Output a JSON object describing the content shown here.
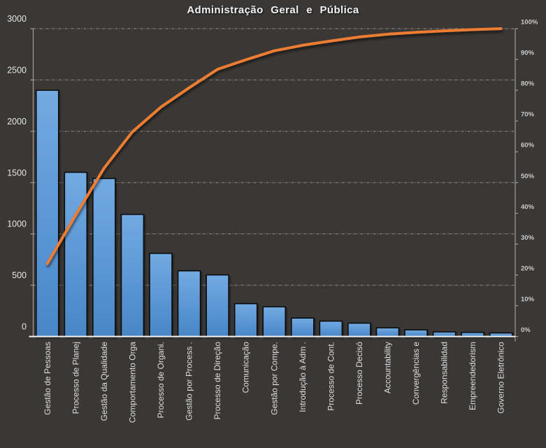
{
  "chart_data": {
    "type": "bar",
    "subtype": "pareto",
    "title": "Administração Geral e Pública",
    "legend": "none",
    "grid": "horizontal-dashed",
    "categories": [
      "Gestão de Pessoas",
      "Processo de Planej",
      "Gestão da Qualidade",
      "Comportamento Orga",
      "Processo de Organi.",
      "Gestão por Process .",
      "Processo de Direção",
      "Comunicação",
      "Gestão por Compe.",
      "Introdução à Adm .",
      "Processo de Cont.",
      "Processo Decisó",
      "Accountability",
      "Convergências e",
      "Responsabilidad",
      "Empreendedorism",
      "Governo Eletrônico"
    ],
    "bars": {
      "values": [
        2400,
        1600,
        1540,
        1190,
        810,
        640,
        600,
        320,
        290,
        180,
        150,
        130,
        85,
        65,
        45,
        40,
        35
      ]
    },
    "cumulative_line": {
      "percent": [
        23.7,
        39.5,
        54.7,
        66.5,
        74.5,
        80.8,
        86.8,
        89.9,
        92.8,
        94.6,
        96.0,
        97.3,
        98.2,
        98.8,
        99.3,
        99.7,
        100.0
      ]
    },
    "axes": {
      "left": {
        "min": 0,
        "max": 3000,
        "step": 500,
        "ticks": [
          "0",
          "500",
          "1000",
          "1500",
          "2000",
          "2500",
          "3000"
        ]
      },
      "right": {
        "min": 0,
        "max": 100,
        "step": 10,
        "ticks": [
          "0%",
          "10%",
          "20%",
          "30%",
          "40%",
          "50%",
          "60%",
          "70%",
          "80%",
          "90%",
          "100%"
        ]
      }
    },
    "colors": {
      "background": "#3a3836",
      "bar_fill_top": "#72aae2",
      "bar_fill_bottom": "#4886c8",
      "bar_stroke": "#0a0a0a",
      "line": "#ed7d31",
      "gridline": "#d9d9d9",
      "plot_border": "#9e9e9e",
      "x_axis_line": "#f5f5f5",
      "text": "#e6e6e6"
    }
  }
}
